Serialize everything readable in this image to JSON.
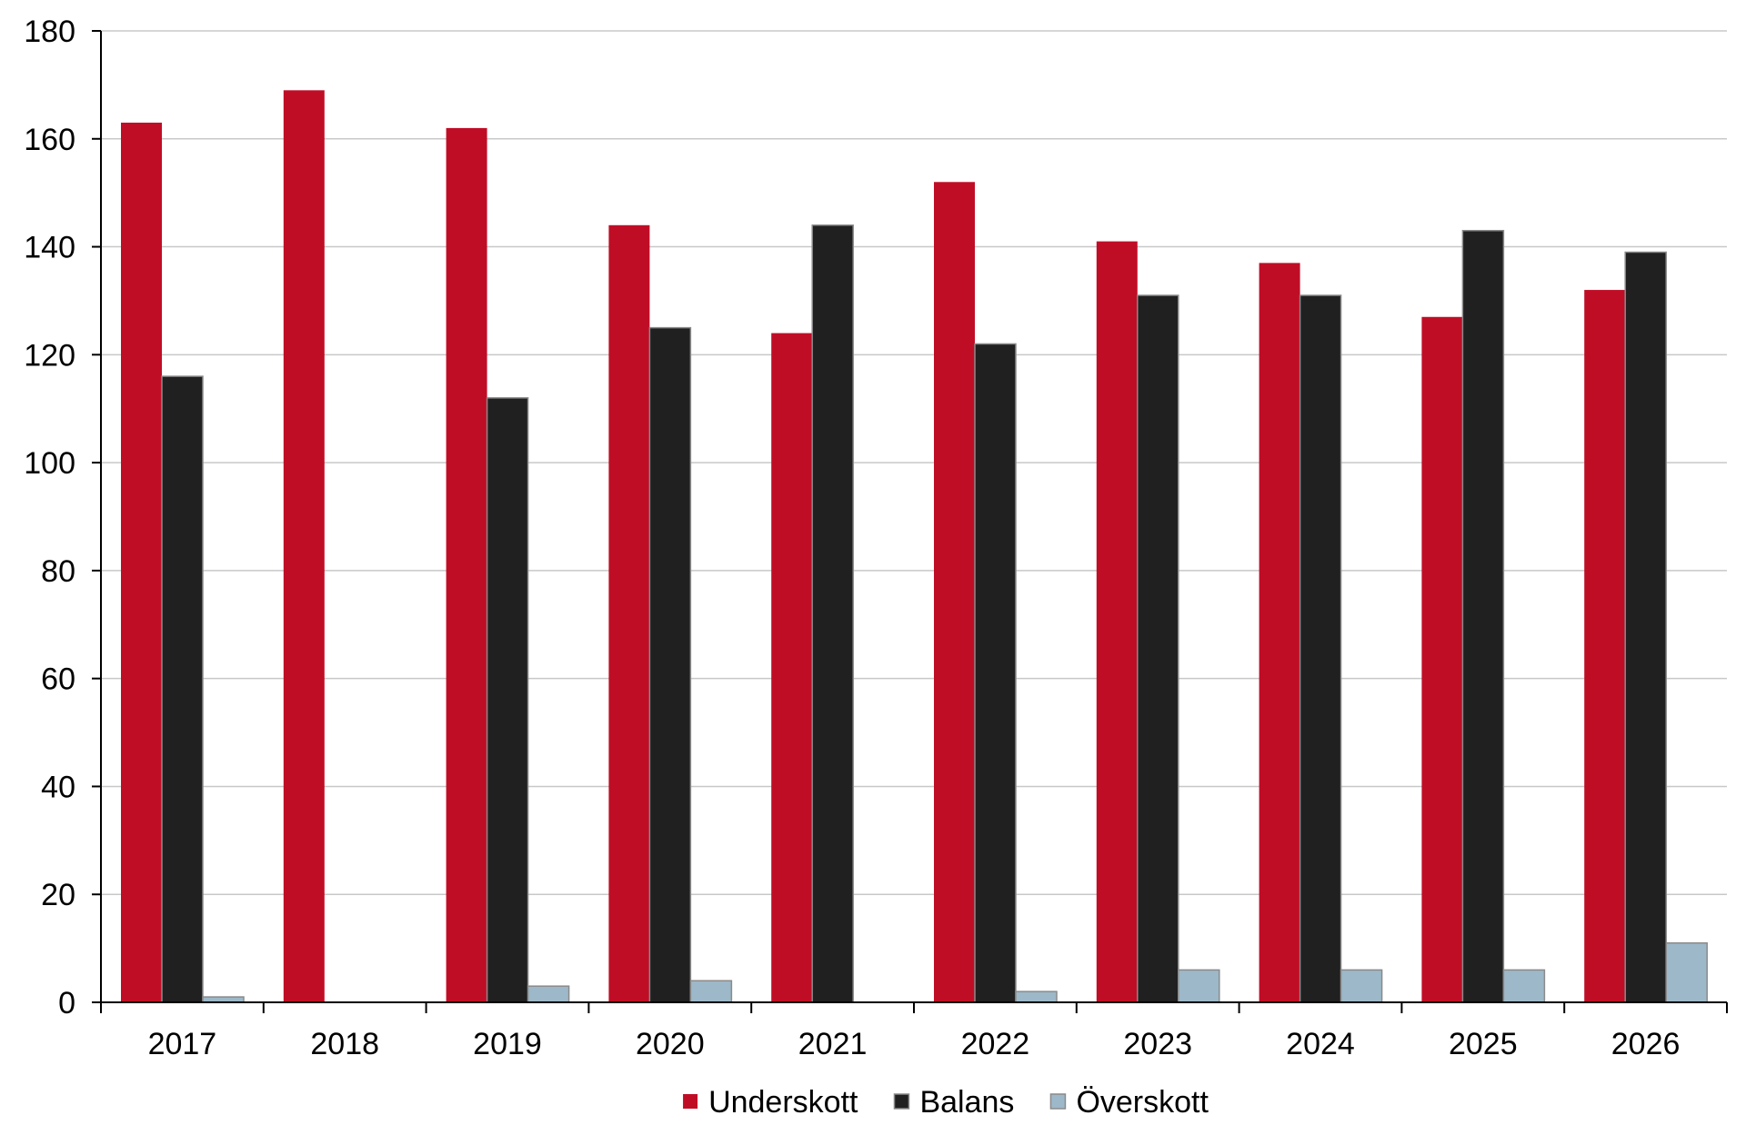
{
  "chart_data": {
    "type": "bar",
    "title": "",
    "xlabel": "",
    "ylabel": "",
    "categories": [
      "2017",
      "2018",
      "2019",
      "2020",
      "2021",
      "2022",
      "2023",
      "2024",
      "2025",
      "2026"
    ],
    "series": [
      {
        "name": "Underskott",
        "color": "#c00d26",
        "values": [
          163,
          169,
          162,
          144,
          124,
          152,
          141,
          137,
          127,
          132
        ]
      },
      {
        "name": "Balans",
        "color": "#202020",
        "values": [
          116,
          0,
          112,
          125,
          144,
          122,
          131,
          131,
          143,
          139
        ]
      },
      {
        "name": "Överskott",
        "color": "#9db8c8",
        "values": [
          1,
          0,
          3,
          4,
          0,
          2,
          6,
          6,
          6,
          11
        ]
      }
    ],
    "ylim": [
      0,
      180
    ],
    "yticks": [
      "0",
      "20",
      "40",
      "60",
      "80",
      "100",
      "120",
      "140",
      "160",
      "180"
    ],
    "grid": true,
    "legend_position": "bottom-center"
  }
}
